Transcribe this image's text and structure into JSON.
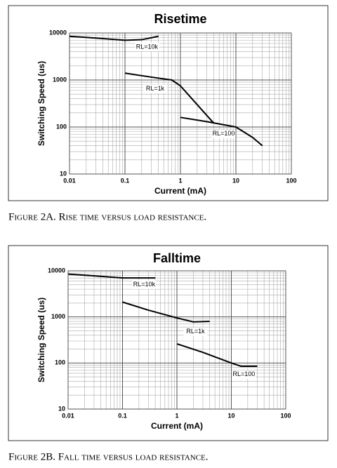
{
  "chart_data": [
    {
      "type": "line",
      "title": "Risetime",
      "xlabel": "Current (mA)",
      "ylabel": "Switching Speed (us)",
      "xscale": "log",
      "yscale": "log",
      "grid": true,
      "color": "#000000",
      "xlim": [
        0.01,
        100
      ],
      "ylim": [
        10,
        10000
      ],
      "xticks": [
        0.01,
        0.1,
        1,
        10,
        100
      ],
      "yticks": [
        10,
        100,
        1000,
        10000
      ],
      "series": [
        {
          "name": "RL=10k",
          "x": [
            0.01,
            0.03,
            0.1,
            0.2,
            0.4
          ],
          "values": [
            8500,
            7800,
            7000,
            7200,
            8500
          ]
        },
        {
          "name": "RL=1k",
          "x": [
            0.1,
            0.3,
            0.7,
            1,
            2,
            4
          ],
          "values": [
            1400,
            1150,
            1000,
            750,
            300,
            120
          ]
        },
        {
          "name": "RL=100",
          "x": [
            1,
            3,
            10,
            20,
            30
          ],
          "values": [
            160,
            130,
            100,
            60,
            40
          ]
        }
      ],
      "caption": "Figure 2A. Rise time versus load resistance."
    },
    {
      "type": "line",
      "title": "Falltime",
      "xlabel": "Current (mA)",
      "ylabel": "Switching Speed (us)",
      "xscale": "log",
      "yscale": "log",
      "grid": true,
      "color": "#000000",
      "xlim": [
        0.01,
        100
      ],
      "ylim": [
        10,
        10000
      ],
      "xticks": [
        0.01,
        0.1,
        1,
        10,
        100
      ],
      "yticks": [
        10,
        100,
        1000,
        10000
      ],
      "series": [
        {
          "name": "RL=10k",
          "x": [
            0.01,
            0.03,
            0.1,
            0.4
          ],
          "values": [
            8500,
            7800,
            7000,
            7000
          ]
        },
        {
          "name": "RL=1k",
          "x": [
            0.1,
            0.3,
            1,
            2,
            4
          ],
          "values": [
            2100,
            1400,
            950,
            780,
            800
          ]
        },
        {
          "name": "RL=100",
          "x": [
            1,
            3,
            10,
            15,
            30
          ],
          "values": [
            260,
            170,
            100,
            85,
            85
          ]
        }
      ],
      "caption": "Figure 2B. Fall time versus load resistance."
    }
  ]
}
